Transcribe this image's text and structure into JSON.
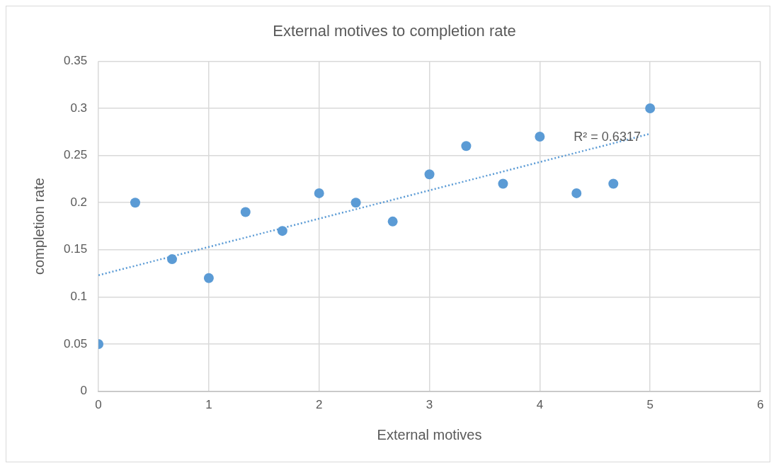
{
  "chart_data": {
    "type": "scatter",
    "title": "External motives to completion rate",
    "xlabel": "External motives",
    "ylabel": "completion rate",
    "x": [
      0,
      0.333,
      0.667,
      1,
      1.333,
      1.667,
      2,
      2.333,
      2.667,
      3,
      3.333,
      3.667,
      4,
      4.333,
      4.667,
      5
    ],
    "series": [
      {
        "color": "#5b9bd5",
        "values": [
          0.05,
          0.2,
          0.14,
          0.12,
          0.19,
          0.17,
          0.21,
          0.2,
          0.18,
          0.23,
          0.26,
          0.22,
          0.27,
          0.21,
          0.22,
          0.3
        ]
      },
      {
        "type": "line",
        "color": "#5b9bd5",
        "line_style": "dotted",
        "marker": "none",
        "x": [
          0,
          5
        ],
        "values": [
          0.123,
          0.273
        ]
      }
    ],
    "xlim": [
      0,
      6
    ],
    "xticks": [
      0,
      1,
      2,
      3,
      4,
      5,
      6
    ],
    "ylim": [
      0,
      0.35
    ],
    "yticks": [
      0,
      0.05,
      0.1,
      0.15,
      0.2,
      0.25,
      0.3,
      0.35
    ],
    "annotations": [
      "R² = 0.6317"
    ],
    "grid": true,
    "legend": false,
    "marker": "circle"
  }
}
